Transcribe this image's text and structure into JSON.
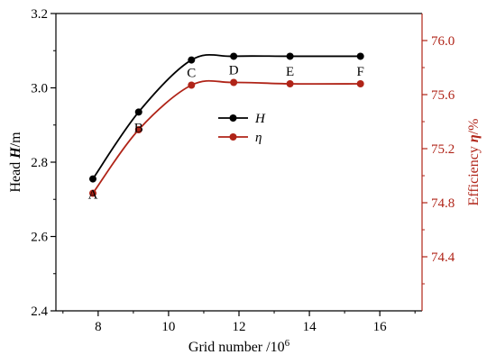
{
  "chart_data": {
    "type": "line",
    "xlabel": "Grid number /10",
    "xlabel_sup": "6",
    "ylabel_left": "Head ",
    "ylabel_left_sym": "H",
    "ylabel_left_unit": "/m",
    "ylabel_right": "Efficiency ",
    "ylabel_right_sym": "η",
    "ylabel_right_unit": "/%",
    "xlim": [
      6.8,
      17.2
    ],
    "xticks": [
      "8",
      "10",
      "12",
      "14",
      "16"
    ],
    "xtick_values": [
      8,
      10,
      12,
      14,
      16
    ],
    "ylim_left": [
      2.4,
      3.2
    ],
    "yticks_left": [
      "2.4",
      "2.6",
      "2.8",
      "3.0",
      "3.2"
    ],
    "ytick_values_left": [
      2.4,
      2.6,
      2.8,
      3.0,
      3.2
    ],
    "ylim_right": [
      74.0,
      76.2
    ],
    "yticks_right": [
      "74.4",
      "74.8",
      "75.2",
      "75.6",
      "76.0"
    ],
    "ytick_values_right": [
      74.4,
      74.8,
      75.2,
      75.6,
      76.0
    ],
    "point_labels": [
      "A",
      "B",
      "C",
      "D",
      "E",
      "F"
    ],
    "x": [
      7.85,
      9.15,
      10.65,
      11.85,
      13.45,
      15.45
    ],
    "series": [
      {
        "name": "H",
        "axis": "left",
        "color": "#000000",
        "values": [
          2.755,
          2.935,
          3.075,
          3.085,
          3.085,
          3.085
        ]
      },
      {
        "name": "η",
        "axis": "right",
        "color": "#b02418",
        "values": [
          74.87,
          75.34,
          75.67,
          75.69,
          75.68,
          75.68
        ]
      }
    ],
    "legend_position": "center",
    "grid": false
  }
}
